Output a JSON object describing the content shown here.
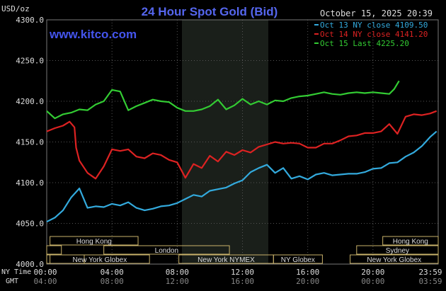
{
  "header": {
    "unit_label": "USD/oz",
    "title": "24 Hour Spot Gold (Bid)",
    "timestamp": "October 15, 2025 20:39",
    "watermark": "www.kitco.com"
  },
  "legend": [
    {
      "label": "Oct 13 NY close 4109.50",
      "color": "#33aadd"
    },
    {
      "label": "Oct 14 NY close 4141.20",
      "color": "#dd2222"
    },
    {
      "label": "Oct 15 Last 4225.20",
      "color": "#33cc33"
    }
  ],
  "axes": {
    "row_label_ny": "NY Time",
    "row_label_gmt": "GMT",
    "ny_ticks": [
      "00:00",
      "04:00",
      "08:00",
      "12:00",
      "16:00",
      "20:00",
      "23:59"
    ],
    "gmt_ticks": [
      "04:00",
      "08:00",
      "12:00",
      "16:00",
      "20:00",
      "00:00",
      "03:59"
    ]
  },
  "sessions": {
    "row1": [
      {
        "label": "Hong Kong"
      },
      {
        "label": "Hong Kong"
      }
    ],
    "row2": [
      {
        "label": "London"
      },
      {
        "label": "Sydney"
      }
    ],
    "row3": [
      {
        "label": "New York Globex"
      },
      {
        "label": "New York NYMEX"
      },
      {
        "label": "NY Globex"
      },
      {
        "label": "New York Globex"
      }
    ]
  },
  "chart_data": {
    "type": "line",
    "title": "24 Hour Spot Gold (Bid)",
    "ylabel": "USD/oz",
    "xlabel": "",
    "x_unit": "hours (NY time)",
    "xlim": [
      0,
      24
    ],
    "ylim": [
      4000,
      4300
    ],
    "yticks": [
      4000,
      4050,
      4100,
      4150,
      4200,
      4250,
      4300
    ],
    "grid": true,
    "series": [
      {
        "name": "Oct 13 NY close 4109.50",
        "color": "#33aadd",
        "x": [
          0,
          0.5,
          1,
          1.5,
          2,
          2.5,
          3,
          3.5,
          4,
          4.5,
          5,
          5.5,
          6,
          6.5,
          7,
          7.5,
          8,
          8.5,
          9,
          9.5,
          10,
          10.5,
          11,
          11.5,
          12,
          12.5,
          13,
          13.5,
          14,
          14.5,
          15,
          15.5,
          16,
          16.5,
          17,
          17.5,
          18,
          18.5,
          19,
          19.5,
          20,
          20.5,
          21,
          21.5,
          22,
          22.5,
          23,
          23.5,
          23.9
        ],
        "values": [
          4052,
          4057,
          4066,
          4082,
          4093,
          4069,
          4071,
          4070,
          4074,
          4072,
          4076,
          4069,
          4066,
          4068,
          4071,
          4072,
          4075,
          4080,
          4085,
          4083,
          4090,
          4092,
          4094,
          4099,
          4103,
          4113,
          4118,
          4122,
          4112,
          4118,
          4105,
          4108,
          4104,
          4110,
          4112,
          4109,
          4110,
          4111,
          4111,
          4113,
          4117,
          4118,
          4124,
          4125,
          4132,
          4137,
          4145,
          4156,
          4163
        ]
      },
      {
        "name": "Oct 14 NY close 4141.20",
        "color": "#dd2222",
        "x": [
          0,
          0.5,
          1,
          1.4,
          1.7,
          1.8,
          2,
          2.5,
          3,
          3.5,
          4,
          4.5,
          5,
          5.5,
          6,
          6.5,
          7,
          7.5,
          8,
          8.5,
          9,
          9.5,
          10,
          10.5,
          11,
          11.5,
          12,
          12.5,
          13,
          13.5,
          14,
          14.5,
          15,
          15.5,
          16,
          16.5,
          17,
          17.5,
          18,
          18.5,
          19,
          19.5,
          20,
          20.5,
          21,
          21.5,
          22,
          22.5,
          23,
          23.5,
          23.9
        ],
        "values": [
          4163,
          4167,
          4170,
          4175,
          4168,
          4143,
          4127,
          4112,
          4105,
          4120,
          4141,
          4139,
          4141,
          4132,
          4130,
          4136,
          4134,
          4128,
          4125,
          4106,
          4123,
          4118,
          4133,
          4126,
          4138,
          4134,
          4140,
          4137,
          4144,
          4147,
          4150,
          4148,
          4149,
          4148,
          4143,
          4143,
          4148,
          4148,
          4152,
          4157,
          4158,
          4161,
          4161,
          4163,
          4172,
          4160,
          4181,
          4184,
          4183,
          4185,
          4188
        ]
      },
      {
        "name": "Oct 15 Last 4225.20",
        "color": "#33cc33",
        "x": [
          0,
          0.5,
          1,
          1.5,
          2,
          2.5,
          3,
          3.5,
          4,
          4.5,
          5,
          5.5,
          6,
          6.5,
          7,
          7.5,
          8,
          8.5,
          9,
          9.5,
          10,
          10.5,
          11,
          11.5,
          12,
          12.5,
          13,
          13.5,
          14,
          14.5,
          15,
          15.5,
          16,
          16.5,
          17,
          17.5,
          18,
          18.5,
          19,
          19.5,
          20,
          20.5,
          21,
          21.3,
          21.6
        ],
        "values": [
          4188,
          4179,
          4184,
          4186,
          4190,
          4189,
          4196,
          4200,
          4214,
          4212,
          4189,
          4194,
          4198,
          4202,
          4200,
          4199,
          4192,
          4188,
          4188,
          4190,
          4194,
          4202,
          4190,
          4195,
          4203,
          4196,
          4200,
          4196,
          4201,
          4200,
          4204,
          4206,
          4207,
          4209,
          4211,
          4209,
          4208,
          4210,
          4211,
          4210,
          4211,
          4210,
          4209,
          4215,
          4225
        ]
      }
    ]
  }
}
